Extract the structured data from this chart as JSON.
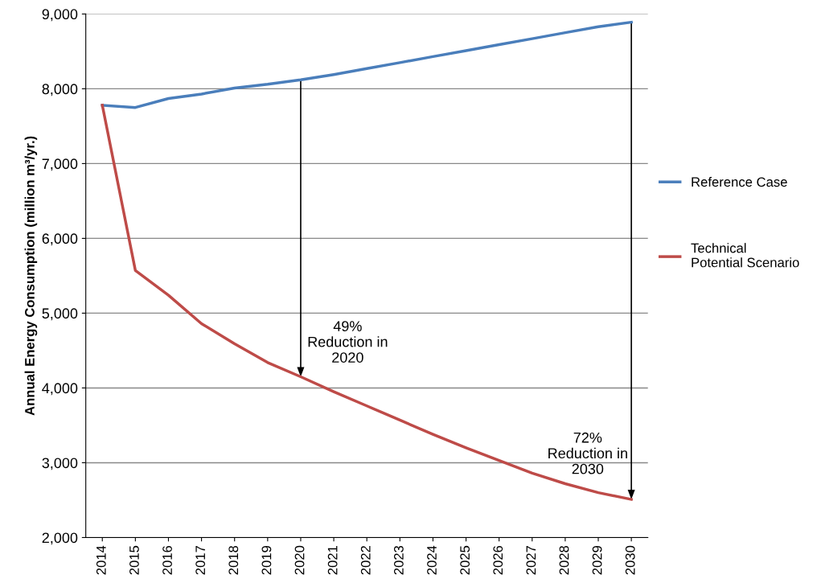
{
  "chart_data": {
    "type": "line",
    "ylabel": "Annual Energy Consumption (million m³/yr.)",
    "categories": [
      "2014",
      "2015",
      "2016",
      "2017",
      "2018",
      "2019",
      "2020",
      "2021",
      "2022",
      "2023",
      "2024",
      "2025",
      "2026",
      "2027",
      "2028",
      "2029",
      "2030"
    ],
    "series": [
      {
        "name": "Reference Case",
        "color": "#4a7ebb",
        "values": [
          7780,
          7750,
          7870,
          7930,
          8010,
          8060,
          8120,
          8190,
          8270,
          8350,
          8430,
          8510,
          8590,
          8670,
          8750,
          8830,
          8890
        ]
      },
      {
        "name": "Technical\nPotential Scenario",
        "color": "#be4b48",
        "values": [
          7780,
          5570,
          5240,
          4860,
          4590,
          4340,
          4150,
          3950,
          3760,
          3570,
          3380,
          3200,
          3030,
          2860,
          2720,
          2600,
          2510
        ]
      }
    ],
    "ylim": [
      2000,
      9000
    ],
    "yticks": [
      {
        "value": 2000,
        "label": "2,000"
      },
      {
        "value": 3000,
        "label": "3,000"
      },
      {
        "value": 4000,
        "label": "4,000"
      },
      {
        "value": 5000,
        "label": "5,000"
      },
      {
        "value": 6000,
        "label": "6,000"
      },
      {
        "value": 7000,
        "label": "7,000"
      },
      {
        "value": 8000,
        "label": "8,000"
      },
      {
        "value": 9000,
        "label": "9,000"
      }
    ],
    "grid": "y",
    "legend": "right",
    "marker": "none",
    "line_style": "solid",
    "annotations": [
      {
        "text": "49%\nReduction in\n2020",
        "x": "2020",
        "y": 4150
      },
      {
        "text": "72%\nReduction in\n2030",
        "x": "2030",
        "y": 2510
      }
    ]
  }
}
